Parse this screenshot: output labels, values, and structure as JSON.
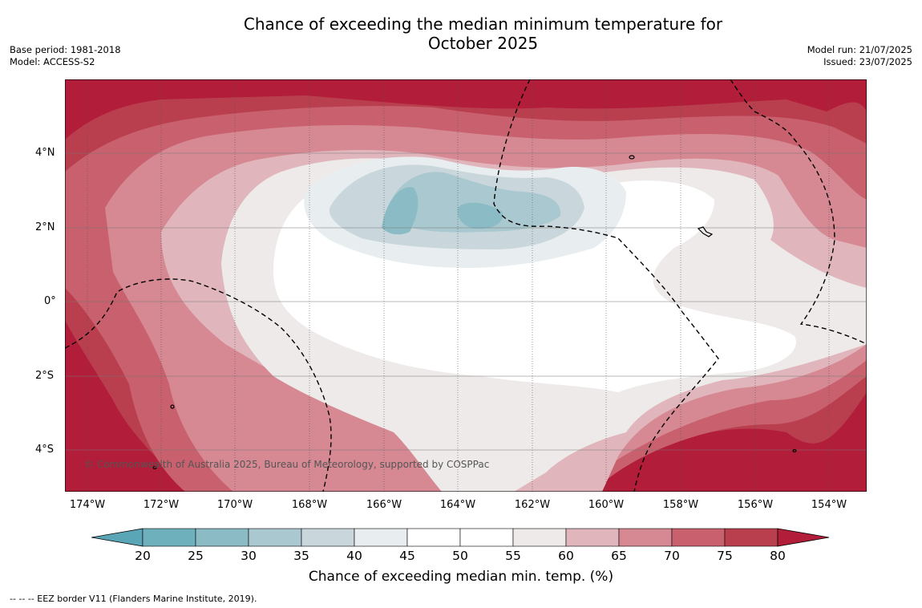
{
  "title_line1": "Chance of exceeding the median minimum temperature for",
  "title_line2": "October 2025",
  "meta_left": [
    "Base period: 1981-2018",
    "Model: ACCESS-S2"
  ],
  "meta_right": [
    "Model run: 21/07/2025",
    "Issued: 23/07/2025"
  ],
  "lat_labels": [
    "4°N",
    "2°N",
    "0°",
    "2°S",
    "4°S"
  ],
  "lon_labels": [
    "174°W",
    "172°W",
    "170°W",
    "168°W",
    "166°W",
    "164°W",
    "162°W",
    "160°W",
    "158°W",
    "156°W",
    "154°W"
  ],
  "credit": "© Commonwealth of Australia 2025, Bureau of Meteorology, supported by COSPPac",
  "colorbar": {
    "ticks": [
      "20",
      "25",
      "30",
      "35",
      "40",
      "45",
      "50",
      "55",
      "60",
      "65",
      "70",
      "75",
      "80"
    ],
    "label": "Chance of exceeding median min. temp. (%)",
    "colors": [
      "#5ba6b6",
      "#6fb0bd",
      "#8bbcc6",
      "#a9c8cf",
      "#c9d7dc",
      "#e8eef0",
      "#ffffff",
      "#ffffff",
      "#eeeaea",
      "#e0b6bc",
      "#d68893",
      "#c9606d",
      "#b93f4f",
      "#b21d39"
    ]
  },
  "footnote": "--  --  -- EEZ border V11 (Flanders Marine Institute, 2019)."
}
